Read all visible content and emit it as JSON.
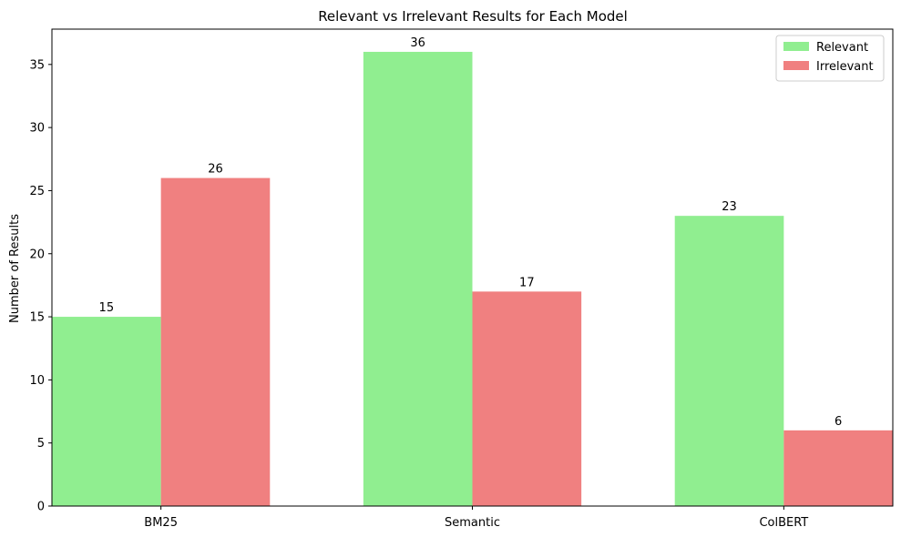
{
  "chart_data": {
    "type": "bar",
    "title": "Relevant vs Irrelevant Results for Each Model",
    "xlabel": "",
    "ylabel": "Number of Results",
    "categories": [
      "BM25",
      "Semantic",
      "ColBERT"
    ],
    "series": [
      {
        "name": "Relevant",
        "values": [
          15,
          36,
          23
        ],
        "color": "#90ee90"
      },
      {
        "name": "Irrelevant",
        "values": [
          26,
          17,
          6
        ],
        "color": "#f08080"
      }
    ],
    "ylim": [
      0,
      37.8
    ],
    "yticks": [
      0,
      5,
      10,
      15,
      20,
      25,
      30,
      35
    ],
    "grid": false,
    "legend_position": "top-right"
  }
}
